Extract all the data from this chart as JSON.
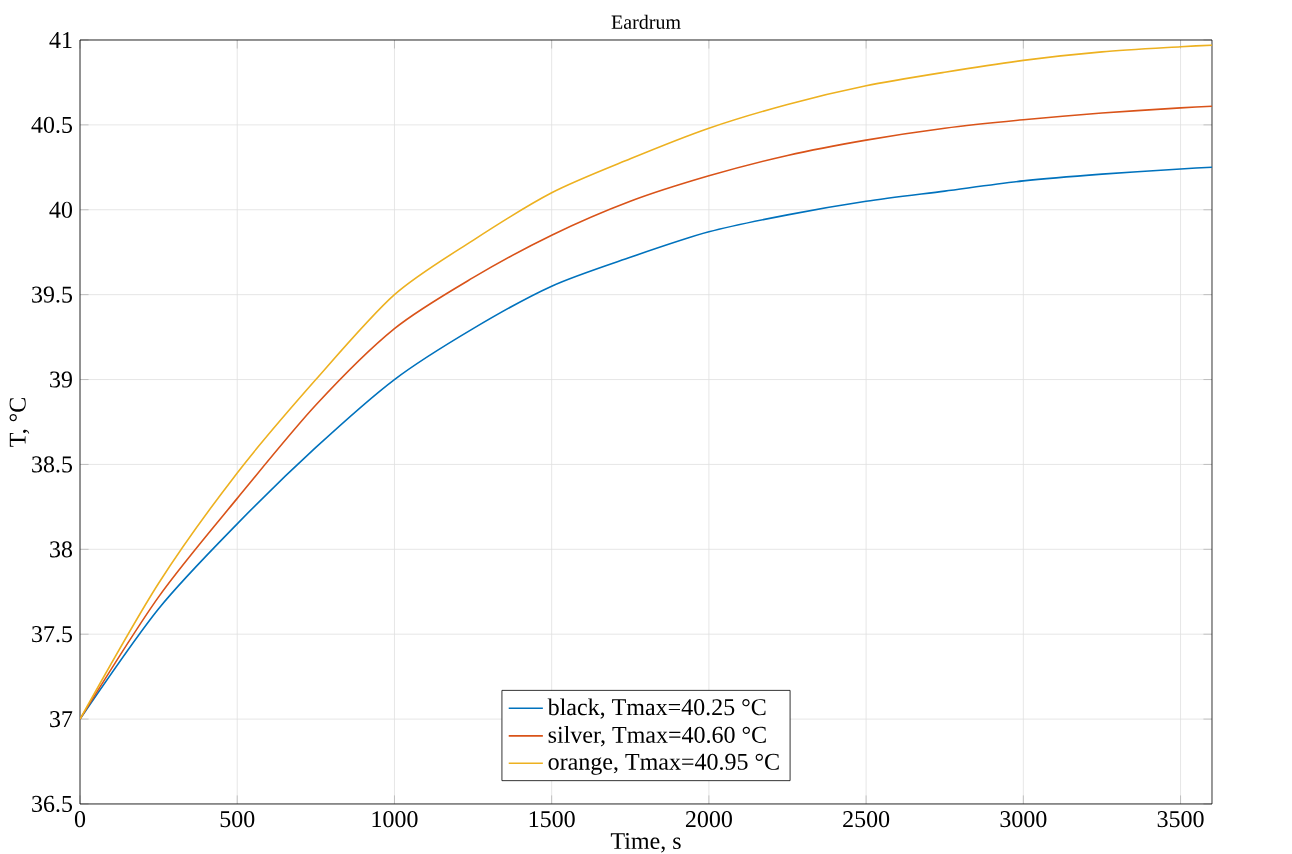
{
  "chart_data": {
    "type": "line",
    "title": "Eardrum",
    "xlabel": "Time, s",
    "ylabel": "T, °C",
    "x": [
      0,
      250,
      500,
      750,
      1000,
      1250,
      1500,
      1750,
      2000,
      2250,
      2500,
      2750,
      3000,
      3250,
      3500,
      3600
    ],
    "series": [
      {
        "name": "black, Tmax=40.25 °C",
        "color": "#0072bd",
        "values": [
          37,
          37.65,
          38.15,
          38.6,
          39.0,
          39.3,
          39.55,
          39.72,
          39.87,
          39.97,
          40.05,
          40.11,
          40.17,
          40.21,
          40.24,
          40.25
        ]
      },
      {
        "name": "silver, Tmax=40.60 °C",
        "color": "#d95319",
        "values": [
          37,
          37.72,
          38.3,
          38.85,
          39.3,
          39.6,
          39.85,
          40.05,
          40.2,
          40.32,
          40.41,
          40.48,
          40.53,
          40.57,
          40.6,
          40.61
        ]
      },
      {
        "name": "orange, Tmax=40.95 °C",
        "color": "#edb120",
        "values": [
          37,
          37.8,
          38.45,
          39.0,
          39.5,
          39.82,
          40.1,
          40.3,
          40.48,
          40.62,
          40.73,
          40.81,
          40.88,
          40.93,
          40.96,
          40.97
        ]
      }
    ],
    "xlim": [
      0,
      3600
    ],
    "ylim": [
      36.5,
      41
    ],
    "xticks": [
      0,
      500,
      1000,
      1500,
      2000,
      2500,
      3000,
      3500
    ],
    "yticks": [
      36.5,
      37,
      37.5,
      38,
      38.5,
      39,
      39.5,
      40,
      40.5,
      41
    ],
    "grid": true,
    "legend": "bottom",
    "marker": "none",
    "line_style": "solid"
  }
}
